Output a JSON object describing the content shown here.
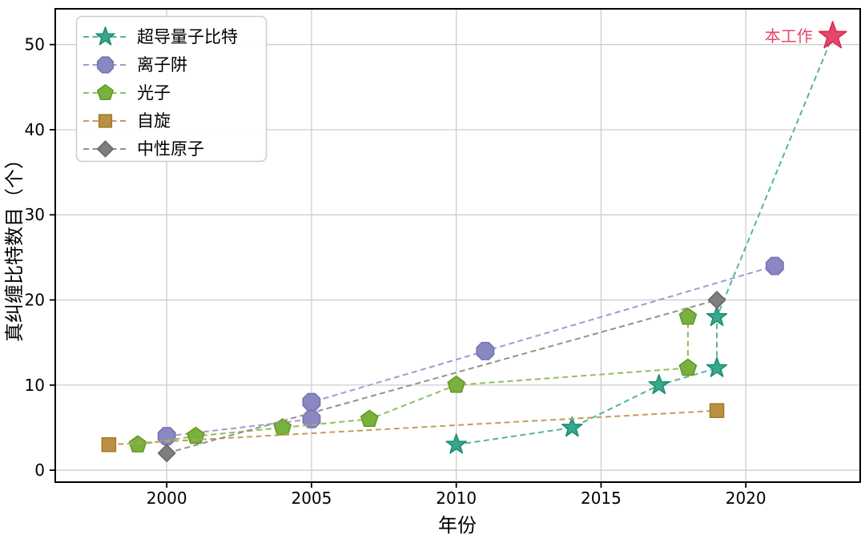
{
  "chart_data": {
    "type": "line",
    "title": "",
    "xlabel": "年份",
    "ylabel": "真纠缠比特数目（个）",
    "xlim": [
      1996.15,
      2023.95
    ],
    "ylim": [
      -1.4,
      54.2
    ],
    "xticks": [
      2000,
      2005,
      2010,
      2015,
      2020
    ],
    "yticks": [
      0,
      10,
      20,
      30,
      40,
      50
    ],
    "grid": true,
    "grid_color": "#c9c9c9",
    "legend_position": "upper-left",
    "series": [
      {
        "key": "superconducting-qubits",
        "name": "超导量子比特",
        "marker": "star",
        "line_color": "#55b49c",
        "fill": "#38a78c",
        "edge": "#1c8e73",
        "points": [
          [
            2010,
            3
          ],
          [
            2014,
            5
          ],
          [
            2017,
            10
          ],
          [
            2019,
            12
          ],
          [
            2019,
            18
          ],
          [
            2023,
            51
          ]
        ],
        "skip_last_marker": true
      },
      {
        "key": "ion-trap",
        "name": "离子阱",
        "marker": "octagon",
        "line_color": "#9e9bce",
        "fill": "#8b87c1",
        "edge": "#7672b2",
        "points": [
          [
            2000,
            4
          ],
          [
            2005,
            6
          ],
          [
            2005,
            8
          ],
          [
            2011,
            14
          ],
          [
            2021,
            24
          ]
        ],
        "skip_last_marker": false
      },
      {
        "key": "photon",
        "name": "光子",
        "marker": "pentagon",
        "line_color": "#90bf5e",
        "fill": "#79b13f",
        "edge": "#62991f",
        "points": [
          [
            1999,
            3
          ],
          [
            2001,
            4
          ],
          [
            2004,
            5
          ],
          [
            2007,
            6
          ],
          [
            2010,
            10
          ],
          [
            2018,
            12
          ],
          [
            2018,
            18
          ]
        ],
        "skip_last_marker": false
      },
      {
        "key": "spin",
        "name": "自旋",
        "marker": "square",
        "line_color": "#c29e5a",
        "fill": "#ba9044",
        "edge": "#a37b2a",
        "points": [
          [
            1998,
            3
          ],
          [
            2019,
            7
          ]
        ],
        "skip_last_marker": false
      },
      {
        "key": "neutral-atom",
        "name": "中性原子",
        "marker": "diamond",
        "line_color": "#919191",
        "fill": "#7e7e7e",
        "edge": "#666666",
        "points": [
          [
            2000,
            2
          ],
          [
            2019,
            20
          ]
        ],
        "skip_last_marker": false
      }
    ],
    "annotation": {
      "key": "this-work",
      "label": "本工作",
      "year": 2023,
      "value": 51,
      "marker": "star",
      "text_color": "#e7466b",
      "fill": "#e7466b",
      "edge": "#d92a52"
    }
  }
}
